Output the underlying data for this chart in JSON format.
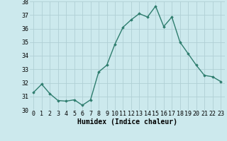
{
  "x": [
    0,
    1,
    2,
    3,
    4,
    5,
    6,
    7,
    8,
    9,
    10,
    11,
    12,
    13,
    14,
    15,
    16,
    17,
    18,
    19,
    20,
    21,
    22,
    23
  ],
  "y": [
    31.3,
    31.9,
    31.2,
    30.7,
    30.65,
    30.75,
    30.35,
    30.75,
    32.8,
    33.3,
    34.85,
    36.1,
    36.65,
    37.1,
    36.85,
    37.65,
    36.15,
    36.85,
    35.0,
    34.15,
    33.3,
    32.55,
    32.45,
    32.1
  ],
  "line_color": "#2e7d6e",
  "marker": "D",
  "marker_size": 1.8,
  "bg_color": "#cce9ed",
  "grid_color": "#b0cfd5",
  "xlabel": "Humidex (Indice chaleur)",
  "ylim": [
    30,
    38
  ],
  "xlim_min": -0.5,
  "xlim_max": 23.5,
  "yticks": [
    30,
    31,
    32,
    33,
    34,
    35,
    36,
    37,
    38
  ],
  "xticks": [
    0,
    1,
    2,
    3,
    4,
    5,
    6,
    7,
    8,
    9,
    10,
    11,
    12,
    13,
    14,
    15,
    16,
    17,
    18,
    19,
    20,
    21,
    22,
    23
  ],
  "tick_label_fontsize": 6,
  "xlabel_fontsize": 7,
  "line_width": 1.0
}
